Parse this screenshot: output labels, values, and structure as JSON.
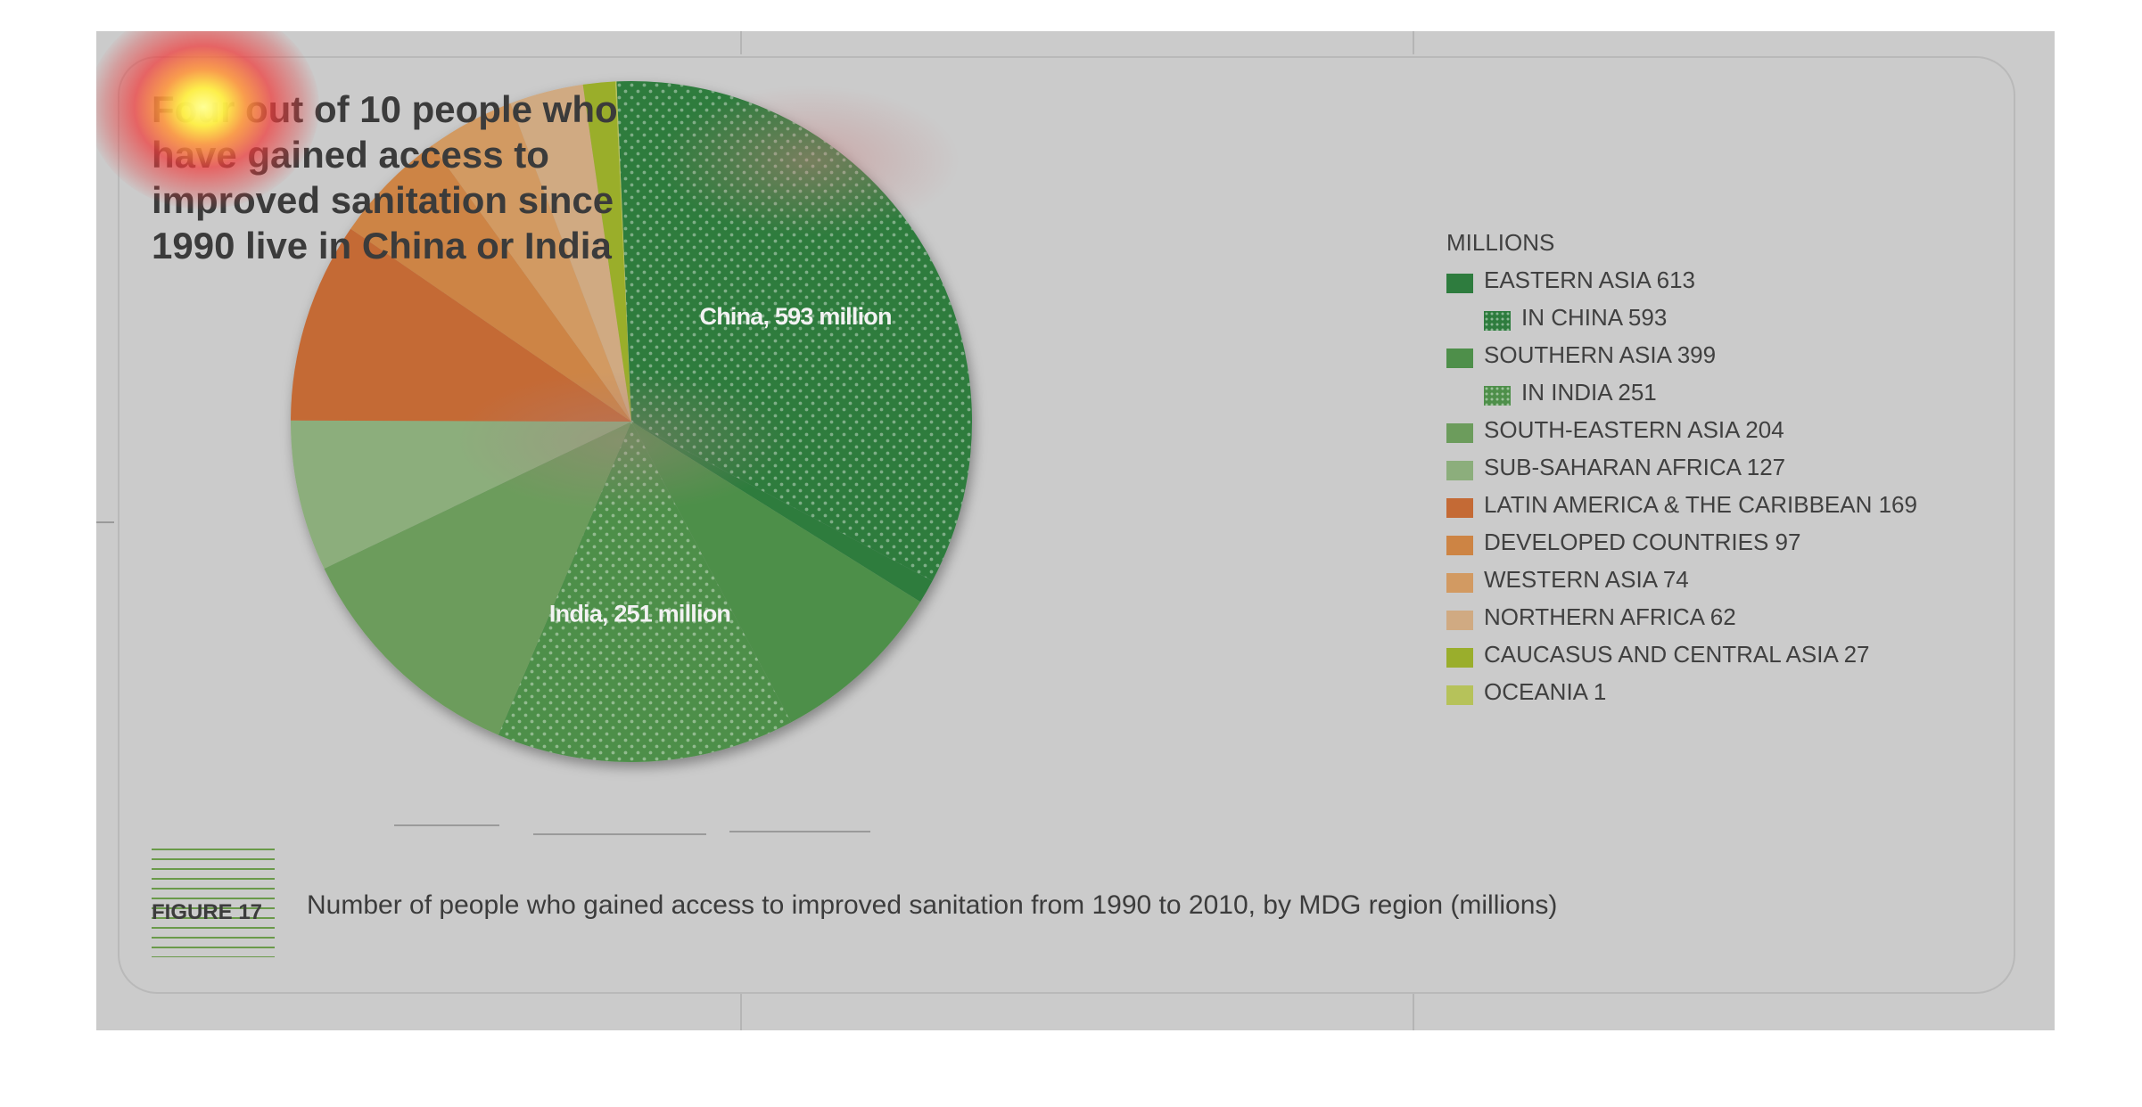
{
  "headline": "Four out of 10 people who have gained access to improved sanitation since 1990 live in China or India",
  "figure": {
    "label": "FIGURE 17",
    "caption": "Number of people who gained access to improved sanitation from 1990 to 2010, by MDG region (millions)"
  },
  "chart_data": {
    "type": "pie",
    "title": "",
    "legend_title": "MILLIONS",
    "legend_position": "right",
    "slices": [
      {
        "label": "IN CHINA",
        "value": 593,
        "color": "#2e7c3e",
        "pattern": "dots",
        "pie_label": "China, 593 million"
      },
      {
        "label": "EASTERN ASIA (excluding China)",
        "value": 20,
        "color": "#2e7c3e"
      },
      {
        "label": "SOUTHERN ASIA (excluding India)",
        "value": 148,
        "color": "#4e8f4a"
      },
      {
        "label": "IN INDIA",
        "value": 251,
        "color": "#4e8f4a",
        "pattern": "dots",
        "pie_label": "India, 251 million"
      },
      {
        "label": "SOUTH-EASTERN ASIA",
        "value": 204,
        "color": "#6c9c5c"
      },
      {
        "label": "SUB-SAHARAN AFRICA",
        "value": 127,
        "color": "#8cae7c"
      },
      {
        "label": "LATIN AMERICA & THE CARIBBEAN",
        "value": 169,
        "color": "#c46a35"
      },
      {
        "label": "DEVELOPED COUNTRIES",
        "value": 97,
        "color": "#cd8444"
      },
      {
        "label": "WESTERN ASIA",
        "value": 74,
        "color": "#d29a62"
      },
      {
        "label": "NORTHERN AFRICA",
        "value": 62,
        "color": "#d0aa82"
      },
      {
        "label": "CAUCASUS AND CENTRAL ASIA",
        "value": 27,
        "color": "#9aae2c"
      },
      {
        "label": "OCEANIA",
        "value": 1,
        "color": "#b6c25a"
      }
    ],
    "legend": [
      {
        "text": "EASTERN ASIA 613",
        "color": "#2e7c3e",
        "dotted": false,
        "indent": false
      },
      {
        "text": "IN CHINA 593",
        "color": "#2e7c3e",
        "dotted": true,
        "indent": true
      },
      {
        "text": "SOUTHERN ASIA 399",
        "color": "#4e8f4a",
        "dotted": false,
        "indent": false
      },
      {
        "text": "IN INDIA 251",
        "color": "#4e8f4a",
        "dotted": true,
        "indent": true
      },
      {
        "text": "SOUTH-EASTERN ASIA 204",
        "color": "#6c9c5c",
        "dotted": false,
        "indent": false
      },
      {
        "text": "SUB-SAHARAN AFRICA 127",
        "color": "#8cae7c",
        "dotted": false,
        "indent": false
      },
      {
        "text": "LATIN AMERICA & THE CARIBBEAN 169",
        "color": "#c46a35",
        "dotted": false,
        "indent": false
      },
      {
        "text": "DEVELOPED COUNTRIES 97",
        "color": "#cd8444",
        "dotted": false,
        "indent": false
      },
      {
        "text": "WESTERN ASIA 74",
        "color": "#d29a62",
        "dotted": false,
        "indent": false
      },
      {
        "text": "NORTHERN AFRICA 62",
        "color": "#d0aa82",
        "dotted": false,
        "indent": false
      },
      {
        "text": "CAUCASUS AND CENTRAL ASIA 27",
        "color": "#9aae2c",
        "dotted": false,
        "indent": false
      },
      {
        "text": "OCEANIA 1",
        "color": "#b6c25a",
        "dotted": false,
        "indent": false
      }
    ]
  }
}
